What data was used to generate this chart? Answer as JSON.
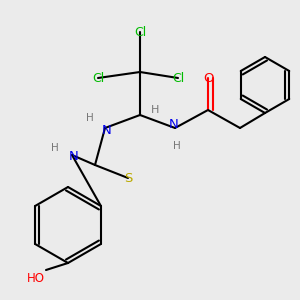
{
  "bg_color": "#ebebeb",
  "atom_colors": {
    "C": "#000000",
    "N": "#0000ee",
    "O": "#ff0000",
    "S": "#bbaa00",
    "Cl": "#00bb00",
    "H": "#777777"
  },
  "bond_lw": 1.5,
  "font_size": 8.5
}
